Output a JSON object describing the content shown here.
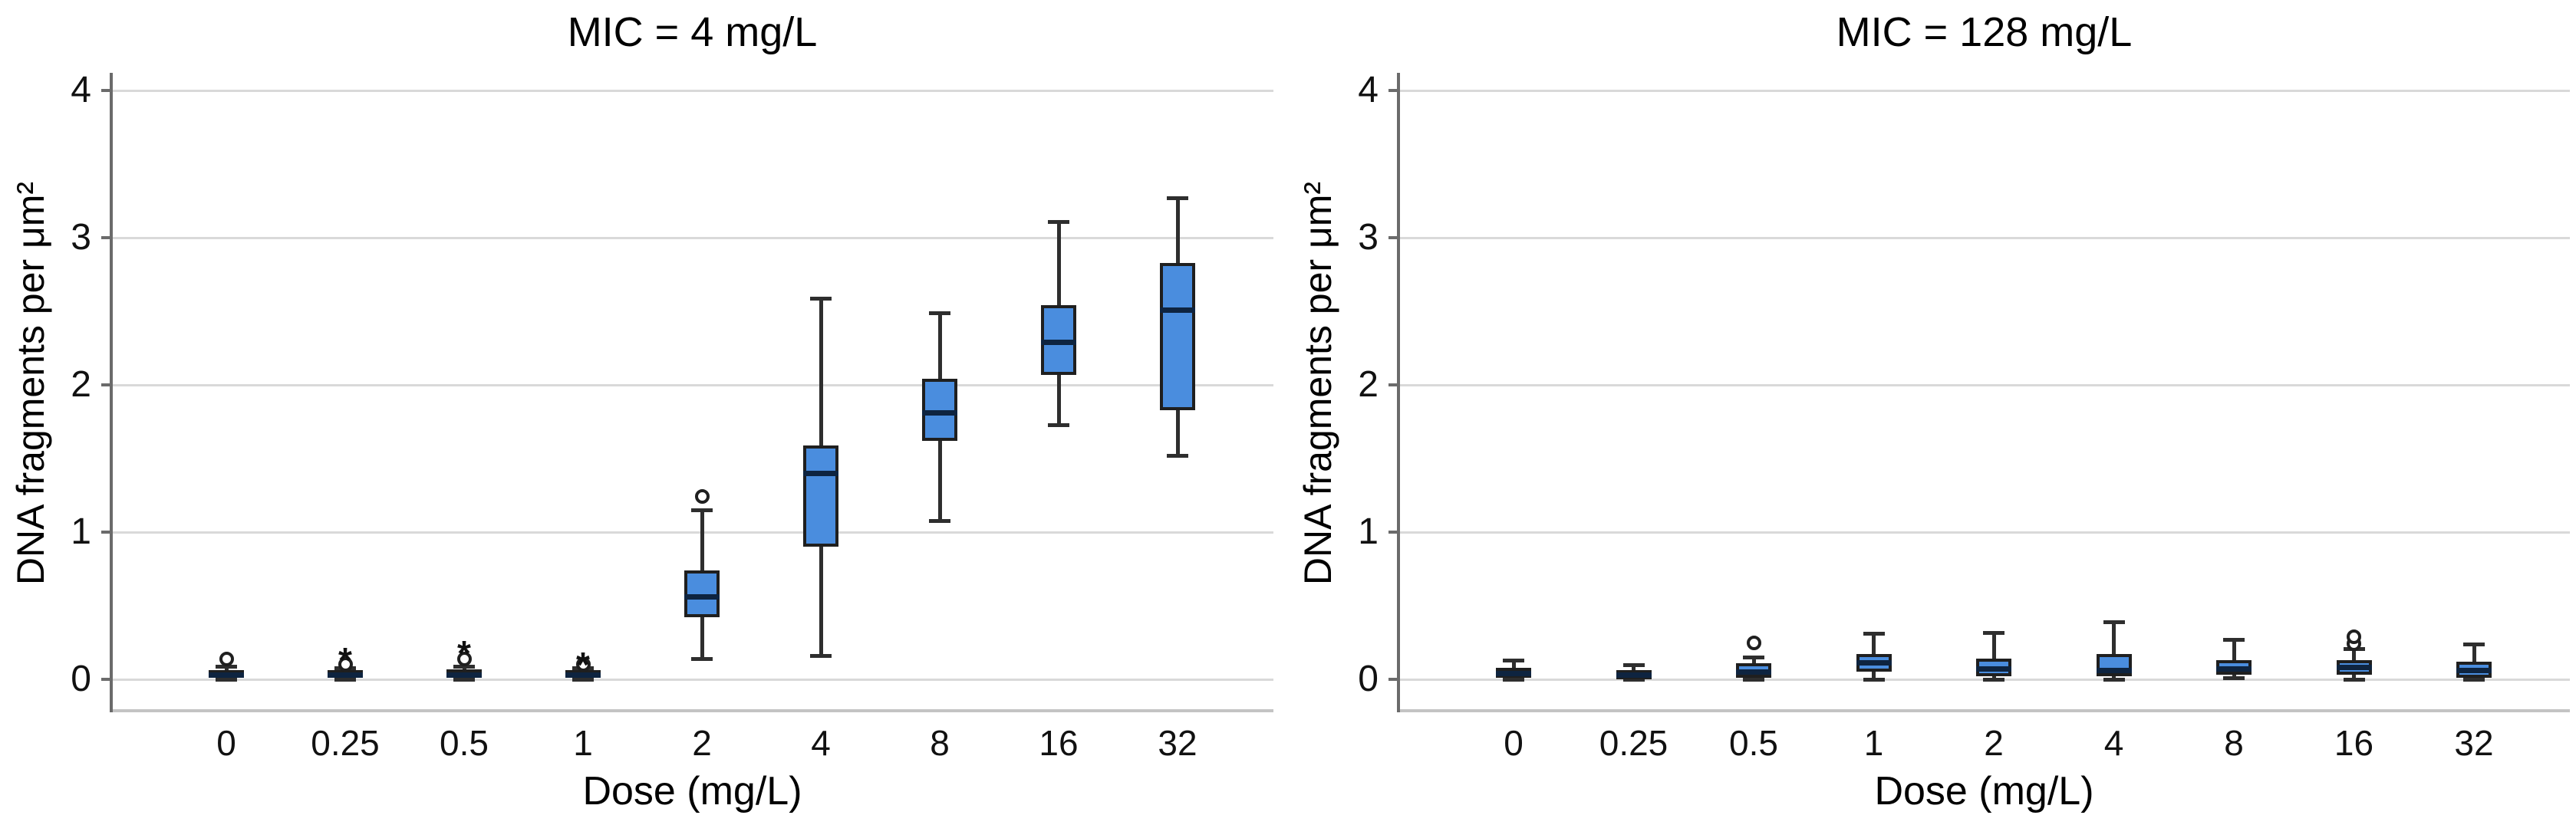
{
  "style": {
    "background": "#ffffff",
    "text_color": "#111111",
    "box_fill": "#4a8dde",
    "box_border": "#1f1f1f",
    "median_color": "#0e2440",
    "whisker_color": "#2e2e2e",
    "gridline_color": "#d9d9d9",
    "frame_color": "#c4c4c4",
    "axis_color": "#6b6b6b"
  },
  "chart_data": [
    {
      "type": "box",
      "title": "MIC = 4 mg/L",
      "xlabel": "Dose (mg/L)",
      "ylabel": "DNA fragments per μm²",
      "ylim": [
        0,
        4
      ],
      "yticks": [
        0,
        1,
        2,
        3,
        4
      ],
      "grid": true,
      "categories": [
        "0",
        "0.25",
        "0.5",
        "1",
        "2",
        "4",
        "8",
        "16",
        "32"
      ],
      "boxes": [
        {
          "low": 0.0,
          "q1": 0.01,
          "median": 0.03,
          "q3": 0.06,
          "high": 0.09,
          "outliers": [
            {
              "type": "circle",
              "value": 0.14
            }
          ]
        },
        {
          "low": 0.0,
          "q1": 0.01,
          "median": 0.03,
          "q3": 0.06,
          "high": 0.08,
          "outliers": [
            {
              "type": "circle",
              "value": 0.1
            },
            {
              "type": "asterisk",
              "value": 0.17
            }
          ]
        },
        {
          "low": 0.0,
          "q1": 0.01,
          "median": 0.03,
          "q3": 0.07,
          "high": 0.09,
          "outliers": [
            {
              "type": "circle",
              "value": 0.14
            },
            {
              "type": "asterisk",
              "value": 0.22
            }
          ]
        },
        {
          "low": 0.0,
          "q1": 0.01,
          "median": 0.03,
          "q3": 0.06,
          "high": 0.08,
          "outliers": [
            {
              "type": "circle",
              "value": 0.1
            },
            {
              "type": "asterisk",
              "value": 0.14
            }
          ]
        },
        {
          "low": 0.14,
          "q1": 0.42,
          "median": 0.56,
          "q3": 0.74,
          "high": 1.15,
          "outliers": [
            {
              "type": "circle",
              "value": 1.24
            }
          ]
        },
        {
          "low": 0.16,
          "q1": 0.9,
          "median": 1.4,
          "q3": 1.59,
          "high": 2.59,
          "outliers": []
        },
        {
          "low": 1.08,
          "q1": 1.62,
          "median": 1.81,
          "q3": 2.04,
          "high": 2.49,
          "outliers": []
        },
        {
          "low": 1.73,
          "q1": 2.07,
          "median": 2.29,
          "q3": 2.54,
          "high": 3.11,
          "outliers": []
        },
        {
          "low": 1.52,
          "q1": 1.83,
          "median": 2.51,
          "q3": 2.83,
          "high": 3.27,
          "outliers": []
        }
      ]
    },
    {
      "type": "box",
      "title": "MIC = 128 mg/L",
      "xlabel": "Dose (mg/L)",
      "ylabel": "DNA fragments per μm²",
      "ylim": [
        0,
        4
      ],
      "yticks": [
        0,
        1,
        2,
        3,
        4
      ],
      "grid": true,
      "categories": [
        "0",
        "0.25",
        "0.5",
        "1",
        "2",
        "4",
        "8",
        "16",
        "32"
      ],
      "boxes": [
        {
          "low": 0.0,
          "q1": 0.01,
          "median": 0.04,
          "q3": 0.08,
          "high": 0.13,
          "outliers": []
        },
        {
          "low": 0.0,
          "q1": 0.0,
          "median": 0.03,
          "q3": 0.06,
          "high": 0.1,
          "outliers": []
        },
        {
          "low": 0.0,
          "q1": 0.01,
          "median": 0.05,
          "q3": 0.11,
          "high": 0.15,
          "outliers": [
            {
              "type": "circle",
              "value": 0.25
            }
          ]
        },
        {
          "low": 0.0,
          "q1": 0.05,
          "median": 0.11,
          "q3": 0.17,
          "high": 0.31,
          "outliers": []
        },
        {
          "low": 0.0,
          "q1": 0.02,
          "median": 0.07,
          "q3": 0.14,
          "high": 0.32,
          "outliers": []
        },
        {
          "low": 0.0,
          "q1": 0.02,
          "median": 0.06,
          "q3": 0.17,
          "high": 0.39,
          "outliers": []
        },
        {
          "low": 0.01,
          "q1": 0.03,
          "median": 0.07,
          "q3": 0.13,
          "high": 0.27,
          "outliers": []
        },
        {
          "low": 0.0,
          "q1": 0.03,
          "median": 0.08,
          "q3": 0.13,
          "high": 0.21,
          "outliers": [
            {
              "type": "circle",
              "value": 0.24
            },
            {
              "type": "circle",
              "value": 0.29
            }
          ]
        },
        {
          "low": 0.0,
          "q1": 0.01,
          "median": 0.06,
          "q3": 0.12,
          "high": 0.24,
          "outliers": []
        }
      ]
    }
  ]
}
